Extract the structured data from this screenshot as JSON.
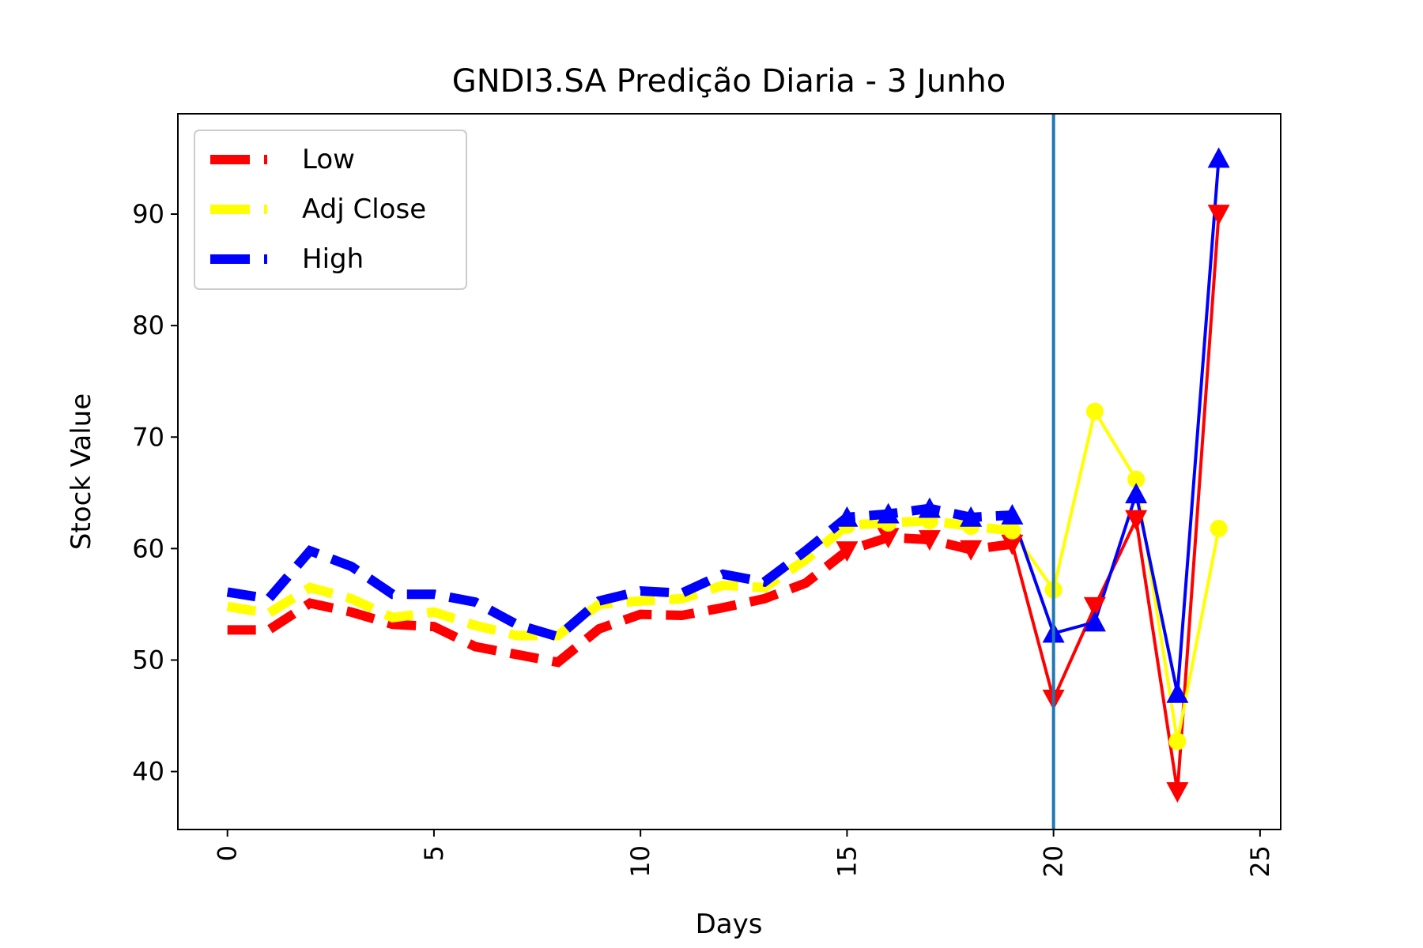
{
  "chart_data": {
    "type": "line",
    "title": "GNDI3.SA Predição Diaria - 3 Junho",
    "xlabel": "Days",
    "ylabel": "Stock Value",
    "xlim": [
      -1.2,
      25.5
    ],
    "ylim": [
      34.8,
      99
    ],
    "xticks": [
      0,
      5,
      10,
      15,
      20,
      25
    ],
    "yticks": [
      40,
      50,
      60,
      70,
      80,
      90
    ],
    "grid": false,
    "legend_position": "upper-left",
    "vertical_line": {
      "x": 20,
      "color": "#1f77b4"
    },
    "series": [
      {
        "name": "Low",
        "color": "#ff0000",
        "marker": "triangle-down",
        "historical": {
          "x": [
            0,
            1,
            2,
            3,
            4,
            5,
            6,
            7,
            8,
            9,
            10,
            11,
            12,
            13,
            14,
            15,
            16,
            17,
            18,
            19
          ],
          "y": [
            52.7,
            52.7,
            55.1,
            54.3,
            53.2,
            53.0,
            51.2,
            50.5,
            49.8,
            52.8,
            54.1,
            54.0,
            54.7,
            55.5,
            56.9,
            59.8,
            61.0,
            60.8,
            59.9,
            60.4
          ]
        },
        "predicted": {
          "x": [
            19,
            20,
            21,
            22,
            23,
            24
          ],
          "y": [
            60.4,
            46.5,
            54.8,
            62.6,
            38.2,
            90.0
          ]
        }
      },
      {
        "name": "Adj Close",
        "color": "#ffff00",
        "marker": "circle",
        "historical": {
          "x": [
            0,
            1,
            2,
            3,
            4,
            5,
            6,
            7,
            8,
            9,
            10,
            11,
            12,
            13,
            14,
            15,
            16,
            17,
            18,
            19
          ],
          "y": [
            54.8,
            54.2,
            56.5,
            55.5,
            53.8,
            54.3,
            53.1,
            52.2,
            52.2,
            55.0,
            55.3,
            55.5,
            56.7,
            56.5,
            59.0,
            62.1,
            62.3,
            62.5,
            62.0,
            61.6
          ]
        },
        "predicted": {
          "x": [
            19,
            20,
            21,
            22,
            23,
            24
          ],
          "y": [
            61.6,
            56.3,
            72.3,
            66.2,
            42.7,
            61.8
          ]
        }
      },
      {
        "name": "High",
        "color": "#0000ff",
        "marker": "triangle-up",
        "historical": {
          "x": [
            0,
            1,
            2,
            3,
            4,
            5,
            6,
            7,
            8,
            9,
            10,
            11,
            12,
            13,
            14,
            15,
            16,
            17,
            18,
            19
          ],
          "y": [
            56.1,
            55.5,
            59.8,
            58.4,
            55.9,
            55.9,
            55.2,
            53.2,
            52.1,
            55.3,
            56.2,
            56.0,
            57.7,
            57.0,
            59.8,
            62.8,
            63.1,
            63.6,
            62.8,
            63.0
          ]
        },
        "predicted": {
          "x": [
            19,
            20,
            21,
            22,
            23,
            24
          ],
          "y": [
            63.0,
            52.4,
            53.4,
            64.9,
            47.0,
            95.0
          ]
        }
      }
    ]
  }
}
